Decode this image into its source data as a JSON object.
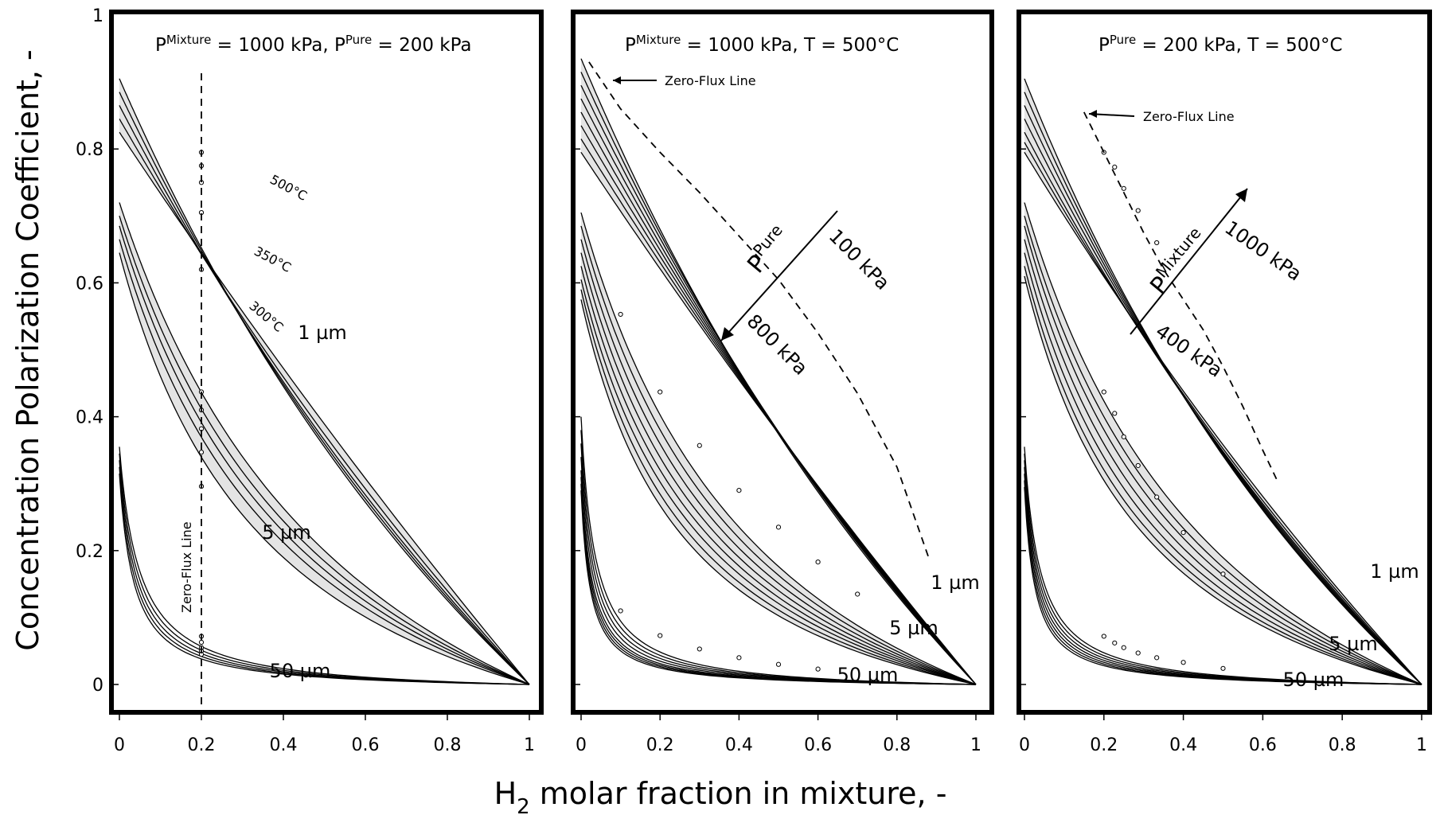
{
  "chart_data": [
    {
      "type": "line",
      "panel": 1,
      "title_parts": [
        "P",
        "Mixture",
        " = 1000 kPa,  P",
        "Pure",
        " = 200 kPa"
      ],
      "xlabel_parts": [
        "H",
        "2",
        " molar fraction in mixture, -"
      ],
      "ylabel": "Concentration Polarization Coefficient, -",
      "xlim": [
        0,
        1
      ],
      "ylim": [
        0,
        1
      ],
      "xticks": [
        "0",
        "0.2",
        "0.4",
        "0.6",
        "0.8",
        "1"
      ],
      "yticks": [
        "0",
        "0.2",
        "0.4",
        "0.6",
        "0.8",
        "1"
      ],
      "grid": false,
      "zero_flux_label": "Zero-Flux Line",
      "zero_flux_x": 0.2,
      "groups": [
        {
          "label": "1 µm",
          "shaded": true,
          "y0": [
            0.905,
            0.885,
            0.865,
            0.845,
            0.825
          ],
          "k": [
            0.55,
            0.46,
            0.37,
            0.26,
            0.12
          ],
          "dots_y": [
            0.795,
            0.775,
            0.75,
            0.705,
            0.62
          ]
        },
        {
          "label": "5 µm",
          "shaded": true,
          "y0": [
            0.72,
            0.7,
            0.685,
            0.665,
            0.645
          ],
          "k": [
            1.6,
            1.8,
            2.0,
            2.2,
            2.6
          ],
          "dots_y": [
            0.437,
            0.41,
            0.382,
            0.347,
            0.296
          ]
        },
        {
          "label": "50 µm",
          "shaded": false,
          "y0": [
            0.355,
            0.345,
            0.335,
            0.325,
            0.315
          ],
          "k": [
            20,
            22,
            24,
            26,
            28
          ],
          "dots_y": [
            0.072,
            0.063,
            0.055,
            0.05,
            0.045
          ]
        }
      ],
      "temperature_labels": [
        "500°C",
        "350°C",
        "300°C"
      ]
    },
    {
      "type": "line",
      "panel": 2,
      "title_parts": [
        "P",
        "Mixture",
        " = 1000 kPa,  T = 500°C"
      ],
      "xlim": [
        0,
        1
      ],
      "ylim": [
        0,
        1
      ],
      "xticks": [
        "0",
        "0.2",
        "0.4",
        "0.6",
        "0.8",
        "1"
      ],
      "zero_flux_label": "Zero-Flux Line",
      "zero_flux_line": {
        "x": [
          0.02,
          0.1,
          0.2,
          0.3,
          0.4,
          0.5,
          0.6,
          0.7,
          0.8,
          0.88
        ],
        "y": [
          0.93,
          0.86,
          0.795,
          0.735,
          0.67,
          0.605,
          0.525,
          0.435,
          0.325,
          0.19
        ]
      },
      "pressure_arrow": {
        "symbol": "P",
        "superscript": "Pure",
        "from": "100 kPa",
        "to": "800 kPa"
      },
      "groups": [
        {
          "label": "1 µm",
          "shaded": true,
          "y0": [
            0.935,
            0.915,
            0.895,
            0.875,
            0.855,
            0.835,
            0.815,
            0.795
          ],
          "k": [
            0.5,
            0.43,
            0.37,
            0.32,
            0.27,
            0.22,
            0.17,
            0.12
          ]
        },
        {
          "label": "5 µm",
          "shaded": true,
          "y0": [
            0.705,
            0.685,
            0.665,
            0.645,
            0.625,
            0.605,
            0.59,
            0.575
          ],
          "k": [
            2.0,
            2.2,
            2.4,
            2.6,
            2.8,
            3.0,
            3.3,
            3.6
          ],
          "dots_x": [
            0.1,
            0.2,
            0.3,
            0.4,
            0.5,
            0.6,
            0.7
          ],
          "dots_y": [
            0.553,
            0.437,
            0.357,
            0.29,
            0.235,
            0.183,
            0.135
          ]
        },
        {
          "label": "50 µm",
          "shaded": false,
          "y0": [
            0.4,
            0.38,
            0.36,
            0.34,
            0.32,
            0.31,
            0.3,
            0.29
          ],
          "k": [
            28,
            30,
            32,
            34,
            36,
            38,
            40,
            42
          ],
          "dots_x": [
            0.1,
            0.2,
            0.3,
            0.4,
            0.5,
            0.6
          ],
          "dots_y": [
            0.11,
            0.073,
            0.053,
            0.04,
            0.03,
            0.023
          ]
        }
      ]
    },
    {
      "type": "line",
      "panel": 3,
      "title_parts": [
        "P",
        "Pure",
        " = 200 kPa, T = 500°C"
      ],
      "xlim": [
        0,
        1
      ],
      "ylim": [
        0,
        1
      ],
      "xticks": [
        "0",
        "0.2",
        "0.4",
        "0.6",
        "0.8",
        "1"
      ],
      "zero_flux_label": "Zero-Flux Line",
      "zero_flux_line": {
        "x": [
          0.15,
          0.2,
          0.25,
          0.3,
          0.35,
          0.4,
          0.45,
          0.5,
          0.55,
          0.6,
          0.64
        ],
        "y": [
          0.855,
          0.795,
          0.735,
          0.675,
          0.62,
          0.575,
          0.53,
          0.475,
          0.415,
          0.35,
          0.3
        ]
      },
      "pressure_arrow": {
        "symbol": "P",
        "superscript": "Mixture",
        "from": "400 kPa",
        "to": "1000 kPa"
      },
      "groups": [
        {
          "label": "1 µm",
          "shaded": true,
          "y0": [
            0.905,
            0.885,
            0.865,
            0.845,
            0.825,
            0.81,
            0.795
          ],
          "k": [
            0.65,
            0.58,
            0.51,
            0.44,
            0.37,
            0.3,
            0.22
          ],
          "dots_x": [
            0.2,
            0.227,
            0.25,
            0.286,
            0.333
          ],
          "dots_y": [
            0.795,
            0.773,
            0.741,
            0.708,
            0.66
          ]
        },
        {
          "label": "5 µm",
          "shaded": true,
          "y0": [
            0.72,
            0.7,
            0.685,
            0.665,
            0.645,
            0.625,
            0.61
          ],
          "k": [
            1.8,
            2.0,
            2.2,
            2.4,
            2.6,
            2.8,
            3.0
          ],
          "dots_x": [
            0.2,
            0.227,
            0.25,
            0.286,
            0.333,
            0.4,
            0.5
          ],
          "dots_y": [
            0.437,
            0.405,
            0.37,
            0.327,
            0.28,
            0.227,
            0.165
          ]
        },
        {
          "label": "50 µm",
          "shaded": false,
          "y0": [
            0.355,
            0.345,
            0.335,
            0.325,
            0.315,
            0.305,
            0.295
          ],
          "k": [
            25,
            27,
            29,
            31,
            33,
            35,
            37
          ],
          "dots_x": [
            0.2,
            0.227,
            0.25,
            0.286,
            0.333,
            0.4,
            0.5
          ],
          "dots_y": [
            0.072,
            0.062,
            0.055,
            0.047,
            0.04,
            0.033,
            0.024
          ]
        }
      ]
    }
  ]
}
